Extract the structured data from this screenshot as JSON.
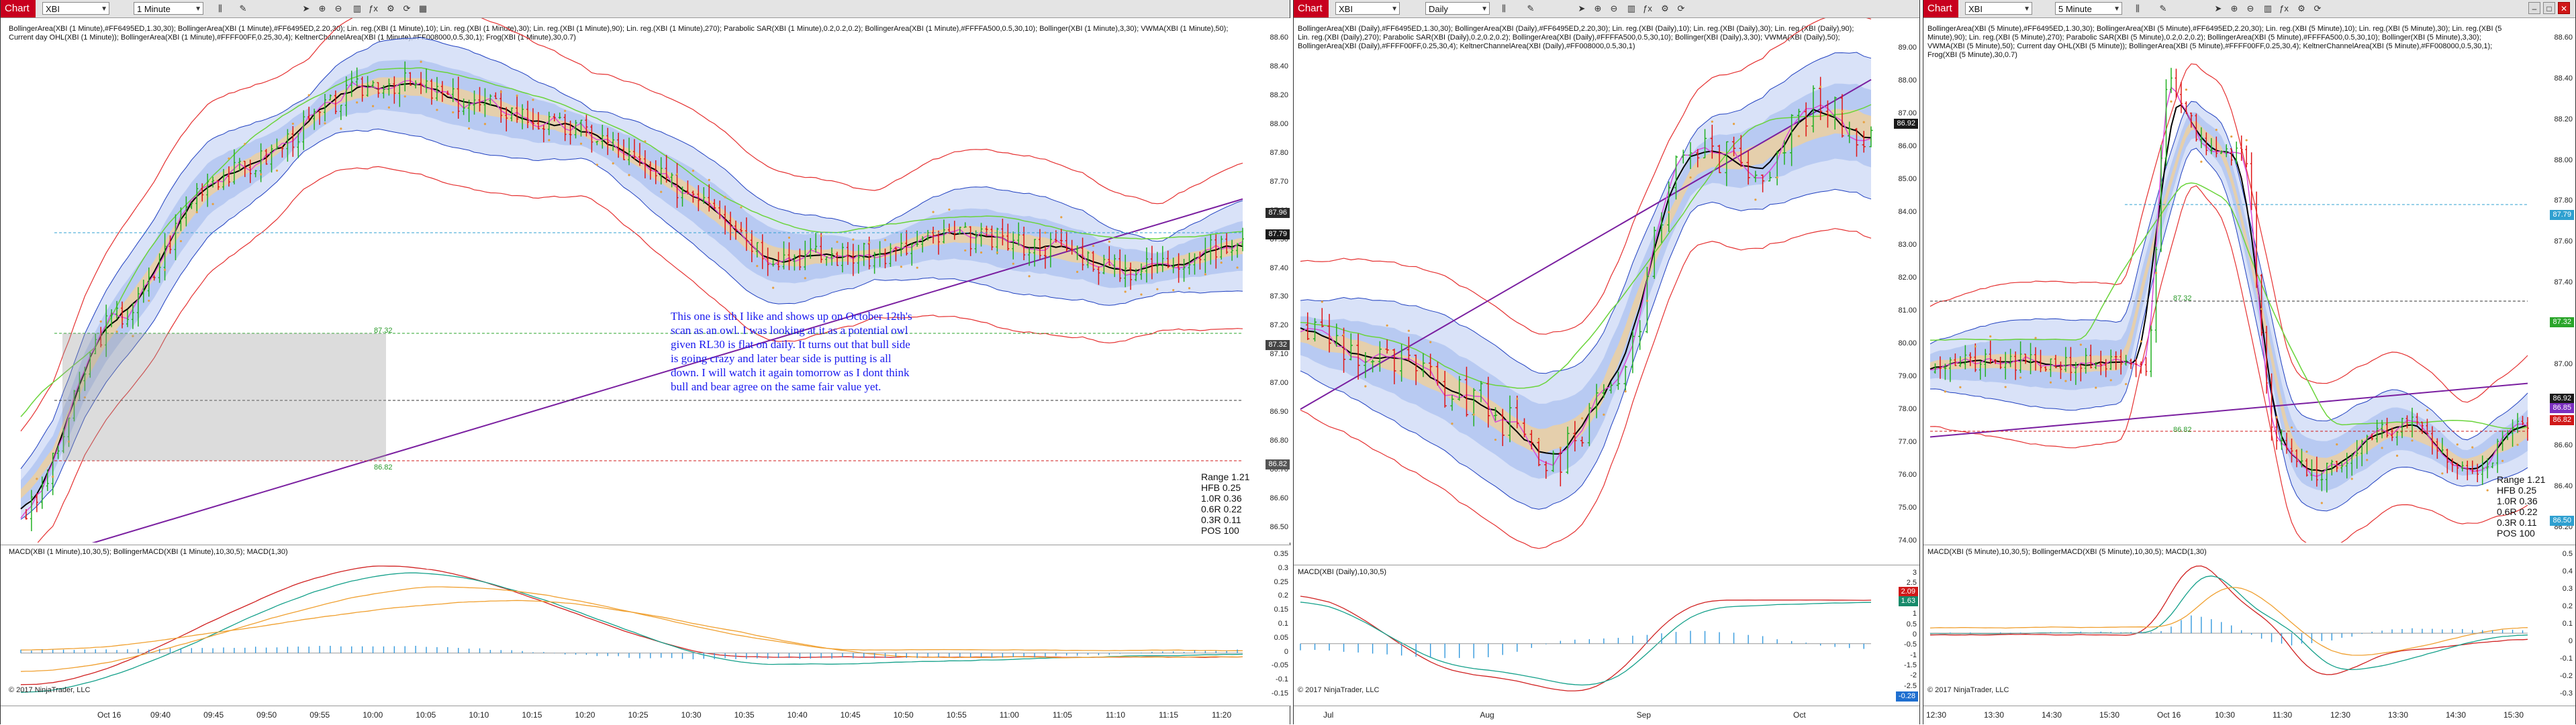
{
  "windows": [
    {
      "id": "w1",
      "chart_label": "Chart",
      "instrument": "XBI",
      "interval": "1 Minute",
      "price_legend": "BollingerArea(XBI (1 Minute),#FF6495ED,1.30,30); BollingerArea(XBI (1 Minute),#FF6495ED,2.20,30); Lin. reg.(XBI (1 Minute),10); Lin. reg.(XBI (1 Minute),30); Lin. reg.(XBI (1 Minute),90); Lin. reg.(XBI (1 Minute),270); Parabolic SAR(XBI (1 Minute),0.2,0.2,0.2); BollingerArea(XBI (1 Minute),#FFFFA500,0.5,30,10); Bollinger(XBI (1 Minute),3,30); VWMA(XBI (1 Minute),50); Current day OHL(XBI (1 Minute)); BollingerArea(XBI (1 Minute),#FFFF00FF,0.25,30,4); KeltnerChannelArea(XBI (1 Minute),#FF008000,0.5,30,1); Frog(XBI (1 Minute),30,0.7)",
      "macd_legend": "MACD(XBI (1 Minute),10,30,5); BollingerMACD(XBI (1 Minute),10,30,5); MACD(1,30)",
      "price_ticks": [
        "88.60",
        "88.40",
        "88.20",
        "88.00",
        "87.80",
        "87.70",
        "87.60",
        "87.50",
        "87.40",
        "87.30",
        "87.20",
        "87.10",
        "87.00",
        "86.90",
        "86.80",
        "86.70",
        "86.60",
        "86.50"
      ],
      "price_tags": [
        {
          "label": "87.96",
          "color": "#2a2a2a"
        },
        {
          "label": "87.79",
          "color": "#1a1a1a"
        },
        {
          "label": "87.32",
          "color": "#444444"
        },
        {
          "label": "86.82",
          "color": "#555555"
        }
      ],
      "macd_ticks": [
        "0.35",
        "0.3",
        "0.25",
        "0.2",
        "0.15",
        "0.1",
        "0.05",
        "0",
        "-0.05",
        "-0.1",
        "-0.15"
      ],
      "x_labels": [
        "Oct 16",
        "09:40",
        "09:45",
        "09:50",
        "09:55",
        "10:00",
        "10:05",
        "10:10",
        "10:15",
        "10:20",
        "10:25",
        "10:30",
        "10:35",
        "10:40",
        "10:45",
        "10:50",
        "10:55",
        "11:00",
        "11:05",
        "11:10",
        "11:15",
        "11:20"
      ],
      "range_text": "Range 1.21",
      "stats": [
        "HFB 0.25",
        "1.0R 0.36",
        "0.6R 0.22",
        "0.3R 0.11",
        "POS 100"
      ],
      "inline_labels": [
        "87.32",
        "86.82"
      ],
      "note": "This one is sth I like and shows up on October 12th's scan as an owl. I was looking at it as a potential owl given RL30 is flat on daily. It turns out that bull side is going crazy and later bear side is putting is all down. I will watch it again tomorrow as I dont think bull and bear agree on the same fair value yet.",
      "copyright": "© 2017 NinjaTrader, LLC"
    },
    {
      "id": "w2",
      "chart_label": "Chart",
      "instrument": "XBI",
      "interval": "Daily",
      "price_legend": "BollingerArea(XBI (Daily),#FF6495ED,1.30,30); BollingerArea(XBI (Daily),#FF6495ED,2.20,30); Lin. reg.(XBI (Daily),10); Lin. reg.(XBI (Daily),30); Lin. reg.(XBI (Daily),90); Lin. reg.(XBI (Daily),270); Parabolic SAR(XBI (Daily),0.2,0.2,0.2); BollingerArea(XBI (Daily),#FFFFA500,0.5,30,10); Bollinger(XBI (Daily),3,30); VWMA(XBI (Daily),50); BollingerArea(XBI (Daily),#FFFF00FF,0.25,30,4); KeltnerChannelArea(XBI (Daily),#FF008000,0.5,30,1)",
      "macd_legend": "MACD(XBI (Daily),10,30,5)",
      "price_ticks": [
        "89.00",
        "88.00",
        "87.00",
        "86.00",
        "85.00",
        "84.00",
        "83.00",
        "82.00",
        "81.00",
        "80.00",
        "79.00",
        "78.00",
        "77.00",
        "76.00",
        "75.00",
        "74.00"
      ],
      "price_tags": [
        {
          "label": "86.92",
          "color": "#1a1a1a"
        }
      ],
      "macd_ticks": [
        "3",
        "2.5",
        "2",
        "1.5",
        "1",
        "0.5",
        "0",
        "-0.5",
        "-1",
        "-1.5",
        "-2",
        "-2.5",
        "-3"
      ],
      "macd_tags": [
        {
          "label": "2.09",
          "color": "#d01818"
        },
        {
          "label": "1.63",
          "color": "#178a6a"
        },
        {
          "label": "-0.28",
          "color": "#1f6fd0"
        }
      ],
      "x_labels": [
        "Jul",
        "Aug",
        "Sep",
        "Oct"
      ],
      "copyright": "© 2017 NinjaTrader, LLC"
    },
    {
      "id": "w3",
      "chart_label": "Chart",
      "instrument": "XBI",
      "interval": "5 Minute",
      "price_legend": "BollingerArea(XBI (5 Minute),#FF6495ED,1.30,30); BollingerArea(XBI (5 Minute),#FF6495ED,2.20,30); Lin. reg.(XBI (5 Minute),10); Lin. reg.(XBI (5 Minute),30); Lin. reg.(XBI (5 Minute),90); Lin. reg.(XBI (5 Minute),270); Parabolic SAR(XBI (5 Minute),0.2,0.2,0.2); BollingerArea(XBI (5 Minute),#FFFFA500,0.5,30,10); Bollinger(XBI (5 Minute),3,30); VWMA(XBI (5 Minute),50); Current day OHL(XBI (5 Minute)); BollingerArea(XBI (5 Minute),#FFFF00FF,0.25,30,4); KeltnerChannelArea(XBI (5 Minute),#FF008000,0.5,30,1); Frog(XBI (5 Minute),30,0.7)",
      "macd_legend": "MACD(XBI (5 Minute),10,30,5); BollingerMACD(XBI (5 Minute),10,30,5); MACD(1,30)",
      "price_ticks": [
        "88.60",
        "88.40",
        "88.20",
        "88.00",
        "87.80",
        "87.60",
        "87.40",
        "87.20",
        "87.00",
        "86.80",
        "86.60",
        "86.40",
        "86.20"
      ],
      "price_tags": [
        {
          "label": "87.79",
          "color": "#2fa0d0"
        },
        {
          "label": "87.32",
          "color": "#2aa52a"
        },
        {
          "label": "86.92",
          "color": "#1a1a1a"
        },
        {
          "label": "86.85",
          "color": "#7b2fbf"
        },
        {
          "label": "86.82",
          "color": "#d01818"
        },
        {
          "label": "86.50",
          "color": "#2fa0d0"
        }
      ],
      "macd_ticks": [
        "0.5",
        "0.4",
        "0.3",
        "0.2",
        "0.1",
        "0",
        "-0.1",
        "-0.2",
        "-0.3"
      ],
      "x_labels": [
        "12:30",
        "13:30",
        "14:30",
        "15:30",
        "Oct 16",
        "10:30",
        "11:30",
        "12:30",
        "13:30",
        "14:30",
        "15:30"
      ],
      "range_text": "Range 1.21",
      "stats": [
        "HFB 0.25",
        "1.0R 0.36",
        "0.6R 0.22",
        "0.3R 0.11",
        "POS 100"
      ],
      "inline_labels": [
        "87.32",
        "86.82"
      ],
      "copyright": "© 2017 NinjaTrader, LLC"
    }
  ],
  "colors": {
    "bull": "#22b022",
    "bear": "#e01515",
    "band_outer": "#c9d6f5",
    "band_inner": "#a9c0f0",
    "fair": "#f0cf9a",
    "magenta": "#d84bd8",
    "black_line": "#000000",
    "green_line": "#6ad43a",
    "purple_line": "#7a1fa0",
    "red_band": "#e53030",
    "blue_band": "#2040c0",
    "macd_red": "#d02020",
    "macd_teal": "#14a08a",
    "macd_orange": "#f0a030",
    "macd_hist": "#3399dd"
  },
  "icons": [
    "pointer-icon",
    "zoom-in-icon",
    "zoom-out-icon",
    "bar-type-icon",
    "indicators-icon",
    "strategies-icon",
    "properties-icon",
    "draw-icon"
  ]
}
